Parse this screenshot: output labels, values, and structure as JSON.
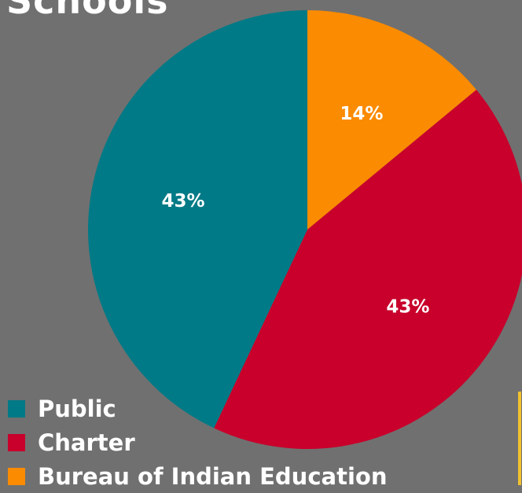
{
  "chart_data": {
    "type": "pie",
    "title": "Schools",
    "slices": [
      {
        "label": "Bureau of Indian Education",
        "value": 14,
        "display": "14%",
        "color": "#fb8b00"
      },
      {
        "label": "Charter",
        "value": 43,
        "display": "43%",
        "color": "#c8002b"
      },
      {
        "label": "Public",
        "value": 43,
        "display": "43%",
        "color": "#007a86"
      }
    ],
    "legend": {
      "placement": "bottom-left",
      "entries": [
        {
          "label": "Public",
          "color": "#007a86"
        },
        {
          "label": "Charter",
          "color": "#c8002b"
        },
        {
          "label": "Bureau of Indian Education",
          "color": "#fb8b00"
        }
      ]
    }
  }
}
